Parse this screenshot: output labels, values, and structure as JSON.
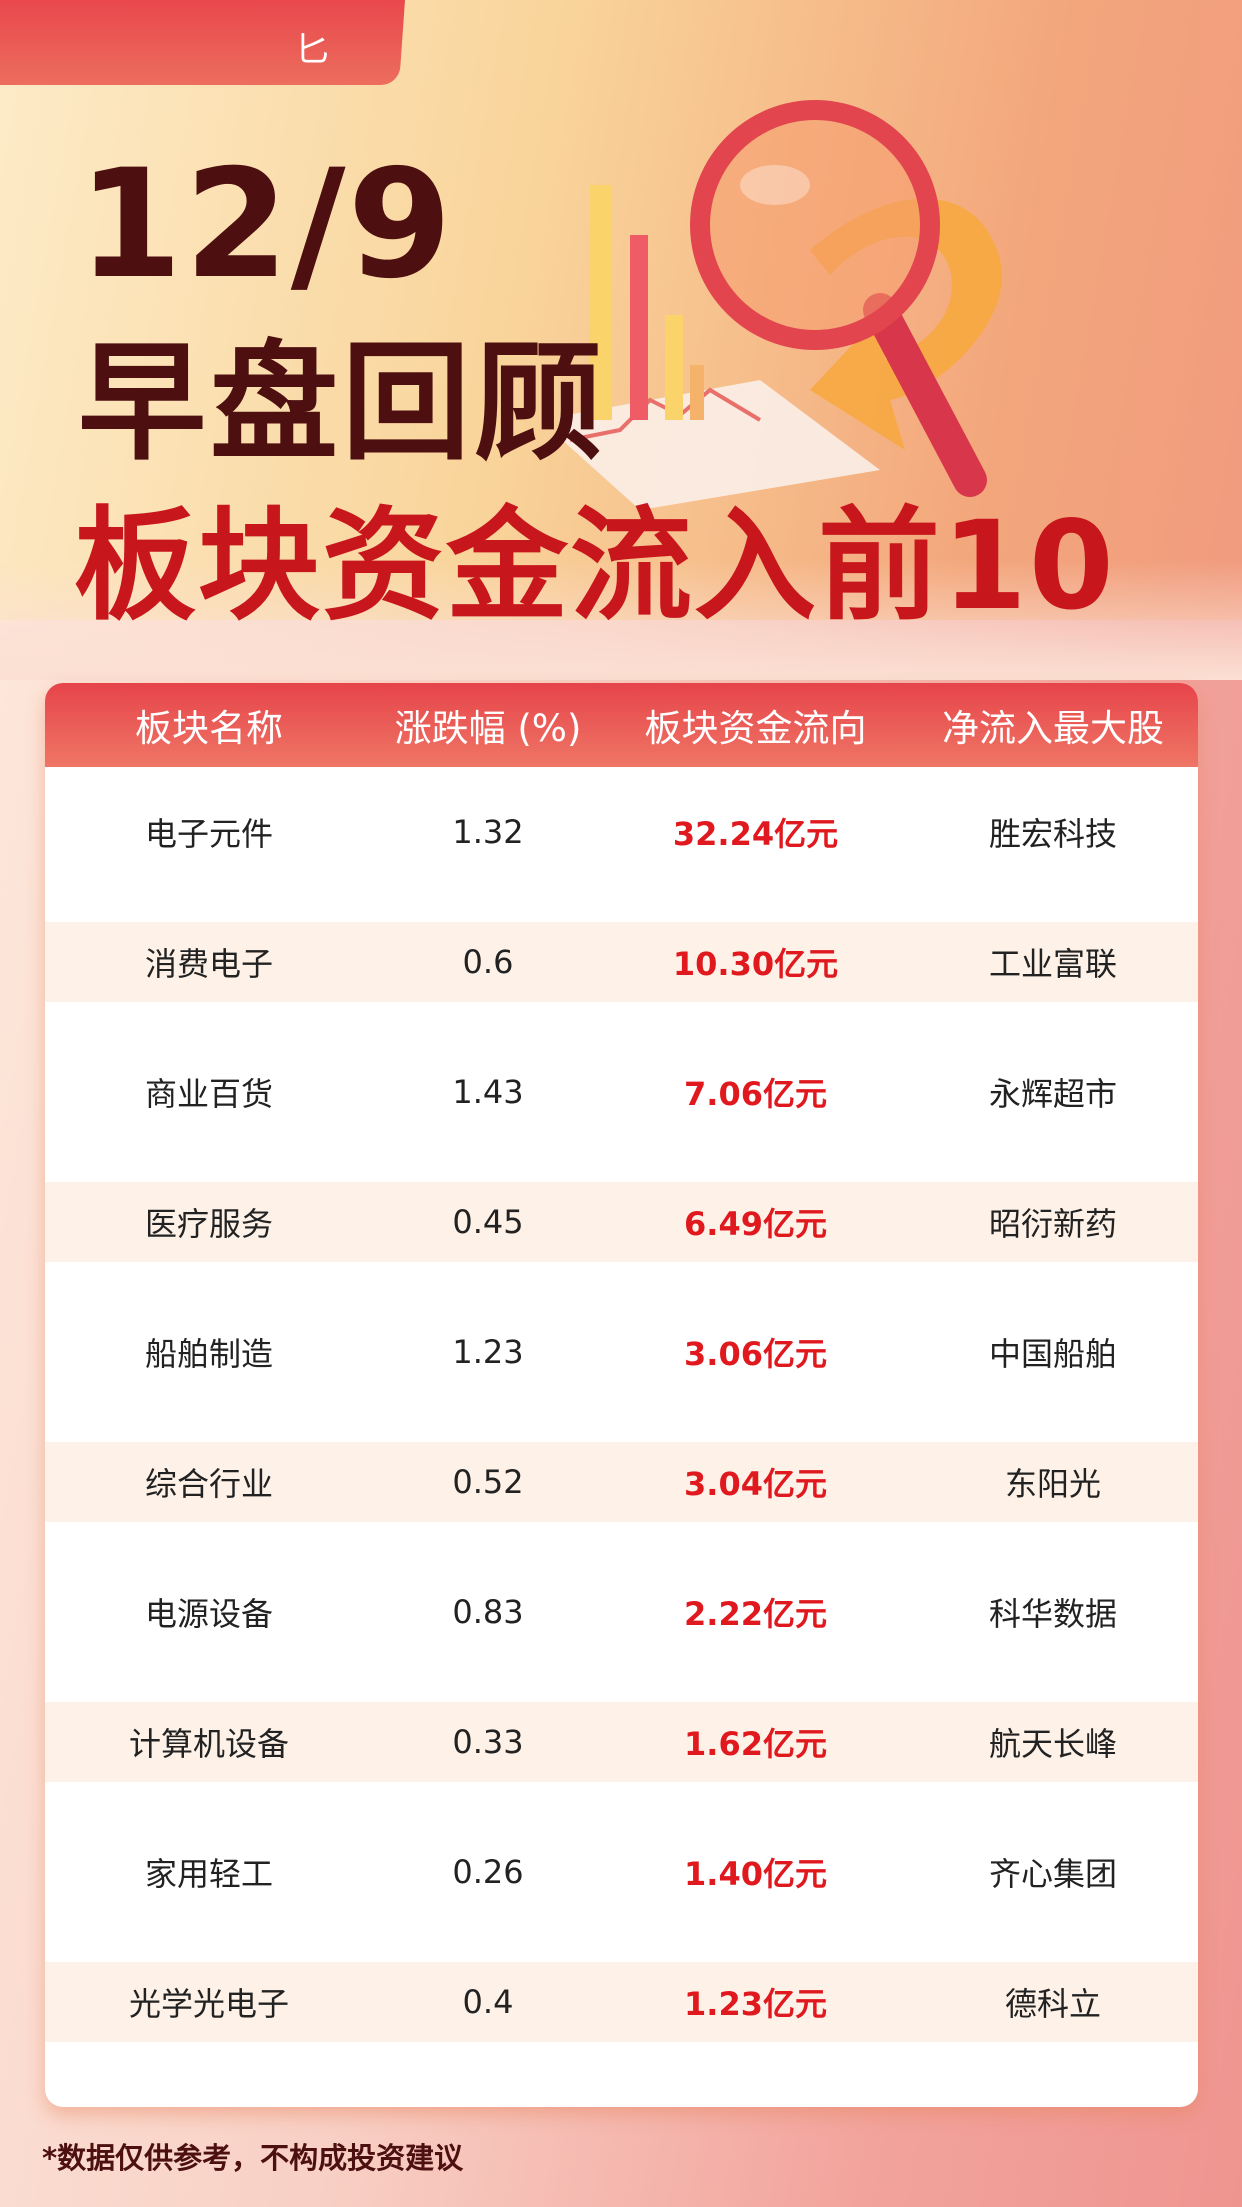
{
  "tag": {
    "text": "匕"
  },
  "header": {
    "date": "12/9",
    "title": "早盘回顾",
    "subtitle": "板块资金流入前10"
  },
  "table": {
    "columns": [
      "板块名称",
      "涨跌幅 (%)",
      "板块资金流向",
      "净流入最大股"
    ],
    "rows": [
      {
        "sector": "电子元件",
        "change": "1.32",
        "flow": "32.24亿元",
        "top_stock": "胜宏科技"
      },
      {
        "sector": "消费电子",
        "change": "0.6",
        "flow": "10.30亿元",
        "top_stock": "工业富联"
      },
      {
        "sector": "商业百货",
        "change": "1.43",
        "flow": "7.06亿元",
        "top_stock": "永辉超市"
      },
      {
        "sector": "医疗服务",
        "change": "0.45",
        "flow": "6.49亿元",
        "top_stock": "昭衍新药"
      },
      {
        "sector": "船舶制造",
        "change": "1.23",
        "flow": "3.06亿元",
        "top_stock": "中国船舶"
      },
      {
        "sector": "综合行业",
        "change": "0.52",
        "flow": "3.04亿元",
        "top_stock": "东阳光"
      },
      {
        "sector": "电源设备",
        "change": "0.83",
        "flow": "2.22亿元",
        "top_stock": "科华数据"
      },
      {
        "sector": "计算机设备",
        "change": "0.33",
        "flow": "1.62亿元",
        "top_stock": "航天长峰"
      },
      {
        "sector": "家用轻工",
        "change": "0.26",
        "flow": "1.40亿元",
        "top_stock": "齐心集团"
      },
      {
        "sector": "光学光电子",
        "change": "0.4",
        "flow": "1.23亿元",
        "top_stock": "德科立"
      }
    ]
  },
  "footer": {
    "disclaimer": "*数据仅供参考，不构成投资建议"
  },
  "colors": {
    "title": "#4d0f10",
    "accent": "#c8161d",
    "flow": "#e0191f",
    "header_bg": "#e6444a"
  }
}
